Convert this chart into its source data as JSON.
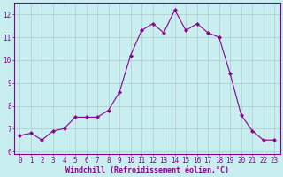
{
  "x": [
    0,
    1,
    2,
    3,
    4,
    5,
    6,
    7,
    8,
    9,
    10,
    11,
    12,
    13,
    14,
    15,
    16,
    17,
    18,
    19,
    20,
    21,
    22,
    23
  ],
  "y": [
    6.7,
    6.8,
    6.5,
    6.9,
    7.0,
    7.5,
    7.5,
    7.5,
    7.8,
    8.6,
    10.2,
    11.3,
    11.6,
    11.2,
    12.2,
    11.3,
    11.6,
    11.2,
    11.0,
    9.4,
    7.6,
    6.9,
    6.5,
    6.5
  ],
  "xlabel": "Windchill (Refroidissement éolien,°C)",
  "ylim": [
    5.9,
    12.5
  ],
  "xlim": [
    -0.5,
    23.5
  ],
  "yticks": [
    6,
    7,
    8,
    9,
    10,
    11,
    12
  ],
  "line_color": "#8B008B",
  "marker_color": "#8B008B",
  "bg_color": "#C8EEF0",
  "grid_color": "#B0C8CC",
  "axes_color": "#8B008B",
  "font_color": "#8B008B",
  "tick_fontsize": 5.5,
  "xlabel_fontsize": 6.0
}
